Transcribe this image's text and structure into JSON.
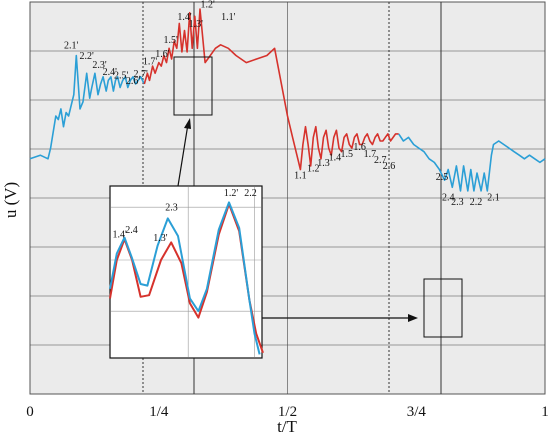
{
  "chart_data": {
    "type": "line",
    "title": "",
    "xlabel": "t/T",
    "ylabel": "u (V)",
    "xlim": [
      0,
      1
    ],
    "grid": true,
    "x_ticks": [
      {
        "v": 0,
        "label": "0"
      },
      {
        "v": 0.25,
        "label": "1/4"
      },
      {
        "v": 0.5,
        "label": "1/2"
      },
      {
        "v": 0.75,
        "label": "3/4"
      },
      {
        "v": 1,
        "label": "1"
      }
    ],
    "colors": {
      "blue": "#2b9fd6",
      "red": "#d6322c",
      "panel": "#ebebeb",
      "grid": "#444444"
    },
    "series": [
      {
        "color": "blue",
        "points": [
          [
            0.0,
            0.66
          ],
          [
            0.02,
            0.67
          ],
          [
            0.035,
            0.66
          ],
          [
            0.04,
            0.69
          ],
          [
            0.05,
            0.78
          ],
          [
            0.055,
            0.77
          ],
          [
            0.06,
            0.8
          ],
          [
            0.065,
            0.75
          ],
          [
            0.07,
            0.79
          ],
          [
            0.075,
            0.78
          ],
          [
            0.08,
            0.81
          ],
          [
            0.085,
            0.84
          ],
          [
            0.09,
            0.95
          ],
          [
            0.097,
            0.8
          ],
          [
            0.103,
            0.82
          ],
          [
            0.11,
            0.9
          ],
          [
            0.116,
            0.83
          ],
          [
            0.12,
            0.86
          ],
          [
            0.126,
            0.9
          ],
          [
            0.132,
            0.84
          ],
          [
            0.137,
            0.87
          ],
          [
            0.142,
            0.89
          ],
          [
            0.148,
            0.85
          ],
          [
            0.152,
            0.88
          ],
          [
            0.157,
            0.89
          ],
          [
            0.162,
            0.85
          ],
          [
            0.166,
            0.88
          ],
          [
            0.17,
            0.89
          ],
          [
            0.175,
            0.86
          ],
          [
            0.18,
            0.88
          ],
          [
            0.185,
            0.89
          ],
          [
            0.19,
            0.86
          ],
          [
            0.195,
            0.88
          ],
          [
            0.2,
            0.89
          ],
          [
            0.205,
            0.87
          ],
          [
            0.21,
            0.88
          ],
          [
            0.215,
            0.89
          ],
          [
            0.222,
            0.87
          ]
        ]
      },
      {
        "color": "red",
        "points": [
          [
            0.222,
            0.87
          ],
          [
            0.228,
            0.9
          ],
          [
            0.232,
            0.88
          ],
          [
            0.238,
            0.92
          ],
          [
            0.243,
            0.9
          ],
          [
            0.25,
            0.93
          ],
          [
            0.255,
            0.92
          ],
          [
            0.26,
            0.95
          ],
          [
            0.265,
            0.93
          ],
          [
            0.27,
            0.97
          ],
          [
            0.275,
            0.94
          ],
          [
            0.28,
            0.99
          ],
          [
            0.285,
            0.97
          ],
          [
            0.29,
            1.04
          ],
          [
            0.295,
            0.96
          ],
          [
            0.3,
            1.02
          ],
          [
            0.305,
            0.96
          ],
          [
            0.31,
            1.07
          ],
          [
            0.315,
            0.97
          ],
          [
            0.32,
            1.06
          ],
          [
            0.325,
            0.97
          ],
          [
            0.33,
            1.08
          ],
          [
            0.34,
            0.93
          ],
          [
            0.35,
            0.95
          ],
          [
            0.36,
            0.97
          ],
          [
            0.37,
            0.98
          ],
          [
            0.385,
            0.97
          ],
          [
            0.4,
            0.95
          ],
          [
            0.42,
            0.93
          ],
          [
            0.44,
            0.94
          ],
          [
            0.46,
            0.95
          ],
          [
            0.475,
            0.97
          ],
          [
            0.5,
            0.78
          ],
          [
            0.51,
            0.72
          ],
          [
            0.52,
            0.66
          ],
          [
            0.525,
            0.63
          ],
          [
            0.53,
            0.7
          ],
          [
            0.535,
            0.75
          ],
          [
            0.54,
            0.7
          ],
          [
            0.545,
            0.64
          ],
          [
            0.55,
            0.72
          ],
          [
            0.555,
            0.75
          ],
          [
            0.56,
            0.69
          ],
          [
            0.565,
            0.66
          ],
          [
            0.57,
            0.72
          ],
          [
            0.575,
            0.74
          ],
          [
            0.58,
            0.69
          ],
          [
            0.585,
            0.67
          ],
          [
            0.59,
            0.72
          ],
          [
            0.595,
            0.74
          ],
          [
            0.6,
            0.69
          ],
          [
            0.605,
            0.68
          ],
          [
            0.61,
            0.72
          ],
          [
            0.615,
            0.73
          ],
          [
            0.62,
            0.7
          ],
          [
            0.625,
            0.69
          ],
          [
            0.63,
            0.72
          ],
          [
            0.635,
            0.73
          ],
          [
            0.64,
            0.7
          ],
          [
            0.645,
            0.7
          ],
          [
            0.65,
            0.72
          ],
          [
            0.655,
            0.73
          ],
          [
            0.66,
            0.71
          ],
          [
            0.665,
            0.7
          ],
          [
            0.67,
            0.72
          ],
          [
            0.675,
            0.73
          ],
          [
            0.68,
            0.71
          ],
          [
            0.685,
            0.71
          ],
          [
            0.69,
            0.72
          ],
          [
            0.695,
            0.73
          ],
          [
            0.7,
            0.71
          ],
          [
            0.705,
            0.72
          ],
          [
            0.71,
            0.73
          ],
          [
            0.716,
            0.73
          ]
        ]
      },
      {
        "color": "blue",
        "points": [
          [
            0.716,
            0.73
          ],
          [
            0.725,
            0.71
          ],
          [
            0.735,
            0.72
          ],
          [
            0.745,
            0.7
          ],
          [
            0.755,
            0.69
          ],
          [
            0.765,
            0.68
          ],
          [
            0.775,
            0.66
          ],
          [
            0.785,
            0.65
          ],
          [
            0.795,
            0.63
          ],
          [
            0.805,
            0.6
          ],
          [
            0.812,
            0.63
          ],
          [
            0.82,
            0.58
          ],
          [
            0.828,
            0.64
          ],
          [
            0.836,
            0.57
          ],
          [
            0.842,
            0.64
          ],
          [
            0.85,
            0.57
          ],
          [
            0.856,
            0.63
          ],
          [
            0.862,
            0.57
          ],
          [
            0.868,
            0.62
          ],
          [
            0.876,
            0.57
          ],
          [
            0.882,
            0.62
          ],
          [
            0.888,
            0.57
          ],
          [
            0.896,
            0.67
          ],
          [
            0.9,
            0.7
          ],
          [
            0.91,
            0.71
          ],
          [
            0.92,
            0.7
          ],
          [
            0.93,
            0.69
          ],
          [
            0.94,
            0.68
          ],
          [
            0.95,
            0.67
          ],
          [
            0.96,
            0.66
          ],
          [
            0.97,
            0.67
          ],
          [
            0.98,
            0.66
          ],
          [
            0.99,
            0.65
          ],
          [
            1.0,
            0.66
          ]
        ]
      }
    ],
    "annotations": [
      {
        "text": "2.1'",
        "x": 0.08,
        "y": 0.97
      },
      {
        "text": "2.2'",
        "x": 0.11,
        "y": 0.94
      },
      {
        "text": "2.3'",
        "x": 0.135,
        "y": 0.915
      },
      {
        "text": "2.4'",
        "x": 0.155,
        "y": 0.895
      },
      {
        "text": "2.5'",
        "x": 0.177,
        "y": 0.885
      },
      {
        "text": "2.6'",
        "x": 0.2,
        "y": 0.87
      },
      {
        "text": "2.7'",
        "x": 0.215,
        "y": 0.89
      },
      {
        "text": "1.7'",
        "x": 0.233,
        "y": 0.925
      },
      {
        "text": "1.6'",
        "x": 0.257,
        "y": 0.945
      },
      {
        "text": "1.5'",
        "x": 0.273,
        "y": 0.985
      },
      {
        "text": "1.4'",
        "x": 0.3,
        "y": 1.05
      },
      {
        "text": "1.3'",
        "x": 0.322,
        "y": 1.03
      },
      {
        "text": "1.2'",
        "x": 0.345,
        "y": 1.085
      },
      {
        "text": "1.1'",
        "x": 0.385,
        "y": 1.05
      },
      {
        "text": "1.1",
        "x": 0.525,
        "y": 0.605
      },
      {
        "text": "1.2",
        "x": 0.55,
        "y": 0.625
      },
      {
        "text": "1.3",
        "x": 0.57,
        "y": 0.64
      },
      {
        "text": "1.4",
        "x": 0.592,
        "y": 0.655
      },
      {
        "text": "1.5",
        "x": 0.615,
        "y": 0.665
      },
      {
        "text": "1.6",
        "x": 0.64,
        "y": 0.685
      },
      {
        "text": "1.7",
        "x": 0.66,
        "y": 0.665
      },
      {
        "text": "2.7",
        "x": 0.68,
        "y": 0.648
      },
      {
        "text": "2.6",
        "x": 0.697,
        "y": 0.632
      },
      {
        "text": "2.5",
        "x": 0.8,
        "y": 0.6
      },
      {
        "text": "2.4",
        "x": 0.812,
        "y": 0.543
      },
      {
        "text": "2.3",
        "x": 0.83,
        "y": 0.53
      },
      {
        "text": "2.2",
        "x": 0.866,
        "y": 0.53
      },
      {
        "text": "2.1",
        "x": 0.9,
        "y": 0.543
      }
    ],
    "inset": {
      "grid": true,
      "series": [
        {
          "color": "red",
          "points": [
            [
              0,
              0.36
            ],
            [
              0.04,
              0.6
            ],
            [
              0.085,
              0.73
            ],
            [
              0.13,
              0.6
            ],
            [
              0.18,
              0.37
            ],
            [
              0.23,
              0.38
            ],
            [
              0.3,
              0.6
            ],
            [
              0.36,
              0.71
            ],
            [
              0.42,
              0.58
            ],
            [
              0.47,
              0.33
            ],
            [
              0.52,
              0.24
            ],
            [
              0.57,
              0.4
            ],
            [
              0.64,
              0.76
            ],
            [
              0.7,
              0.95
            ],
            [
              0.76,
              0.78
            ],
            [
              0.82,
              0.35
            ],
            [
              0.86,
              0.14
            ],
            [
              0.9,
              0.02
            ]
          ]
        },
        {
          "color": "blue",
          "points": [
            [
              0,
              0.42
            ],
            [
              0.04,
              0.64
            ],
            [
              0.085,
              0.74
            ],
            [
              0.13,
              0.61
            ],
            [
              0.18,
              0.45
            ],
            [
              0.22,
              0.44
            ],
            [
              0.28,
              0.69
            ],
            [
              0.34,
              0.86
            ],
            [
              0.4,
              0.75
            ],
            [
              0.47,
              0.36
            ],
            [
              0.52,
              0.28
            ],
            [
              0.57,
              0.42
            ],
            [
              0.64,
              0.79
            ],
            [
              0.7,
              0.96
            ],
            [
              0.76,
              0.8
            ],
            [
              0.82,
              0.35
            ],
            [
              0.85,
              0.14
            ],
            [
              0.88,
              0.01
            ]
          ]
        }
      ],
      "annotations": [
        {
          "text": "2.3",
          "x": 0.325,
          "y": 0.91
        },
        {
          "text": "1.2'",
          "x": 0.67,
          "y": 1.0
        },
        {
          "text": "2.2",
          "x": 0.79,
          "y": 1.0
        },
        {
          "text": "1.4'",
          "x": 0.015,
          "y": 0.74
        },
        {
          "text": "2.4",
          "x": 0.09,
          "y": 0.77
        },
        {
          "text": "1.3'",
          "x": 0.255,
          "y": 0.72
        }
      ]
    }
  }
}
